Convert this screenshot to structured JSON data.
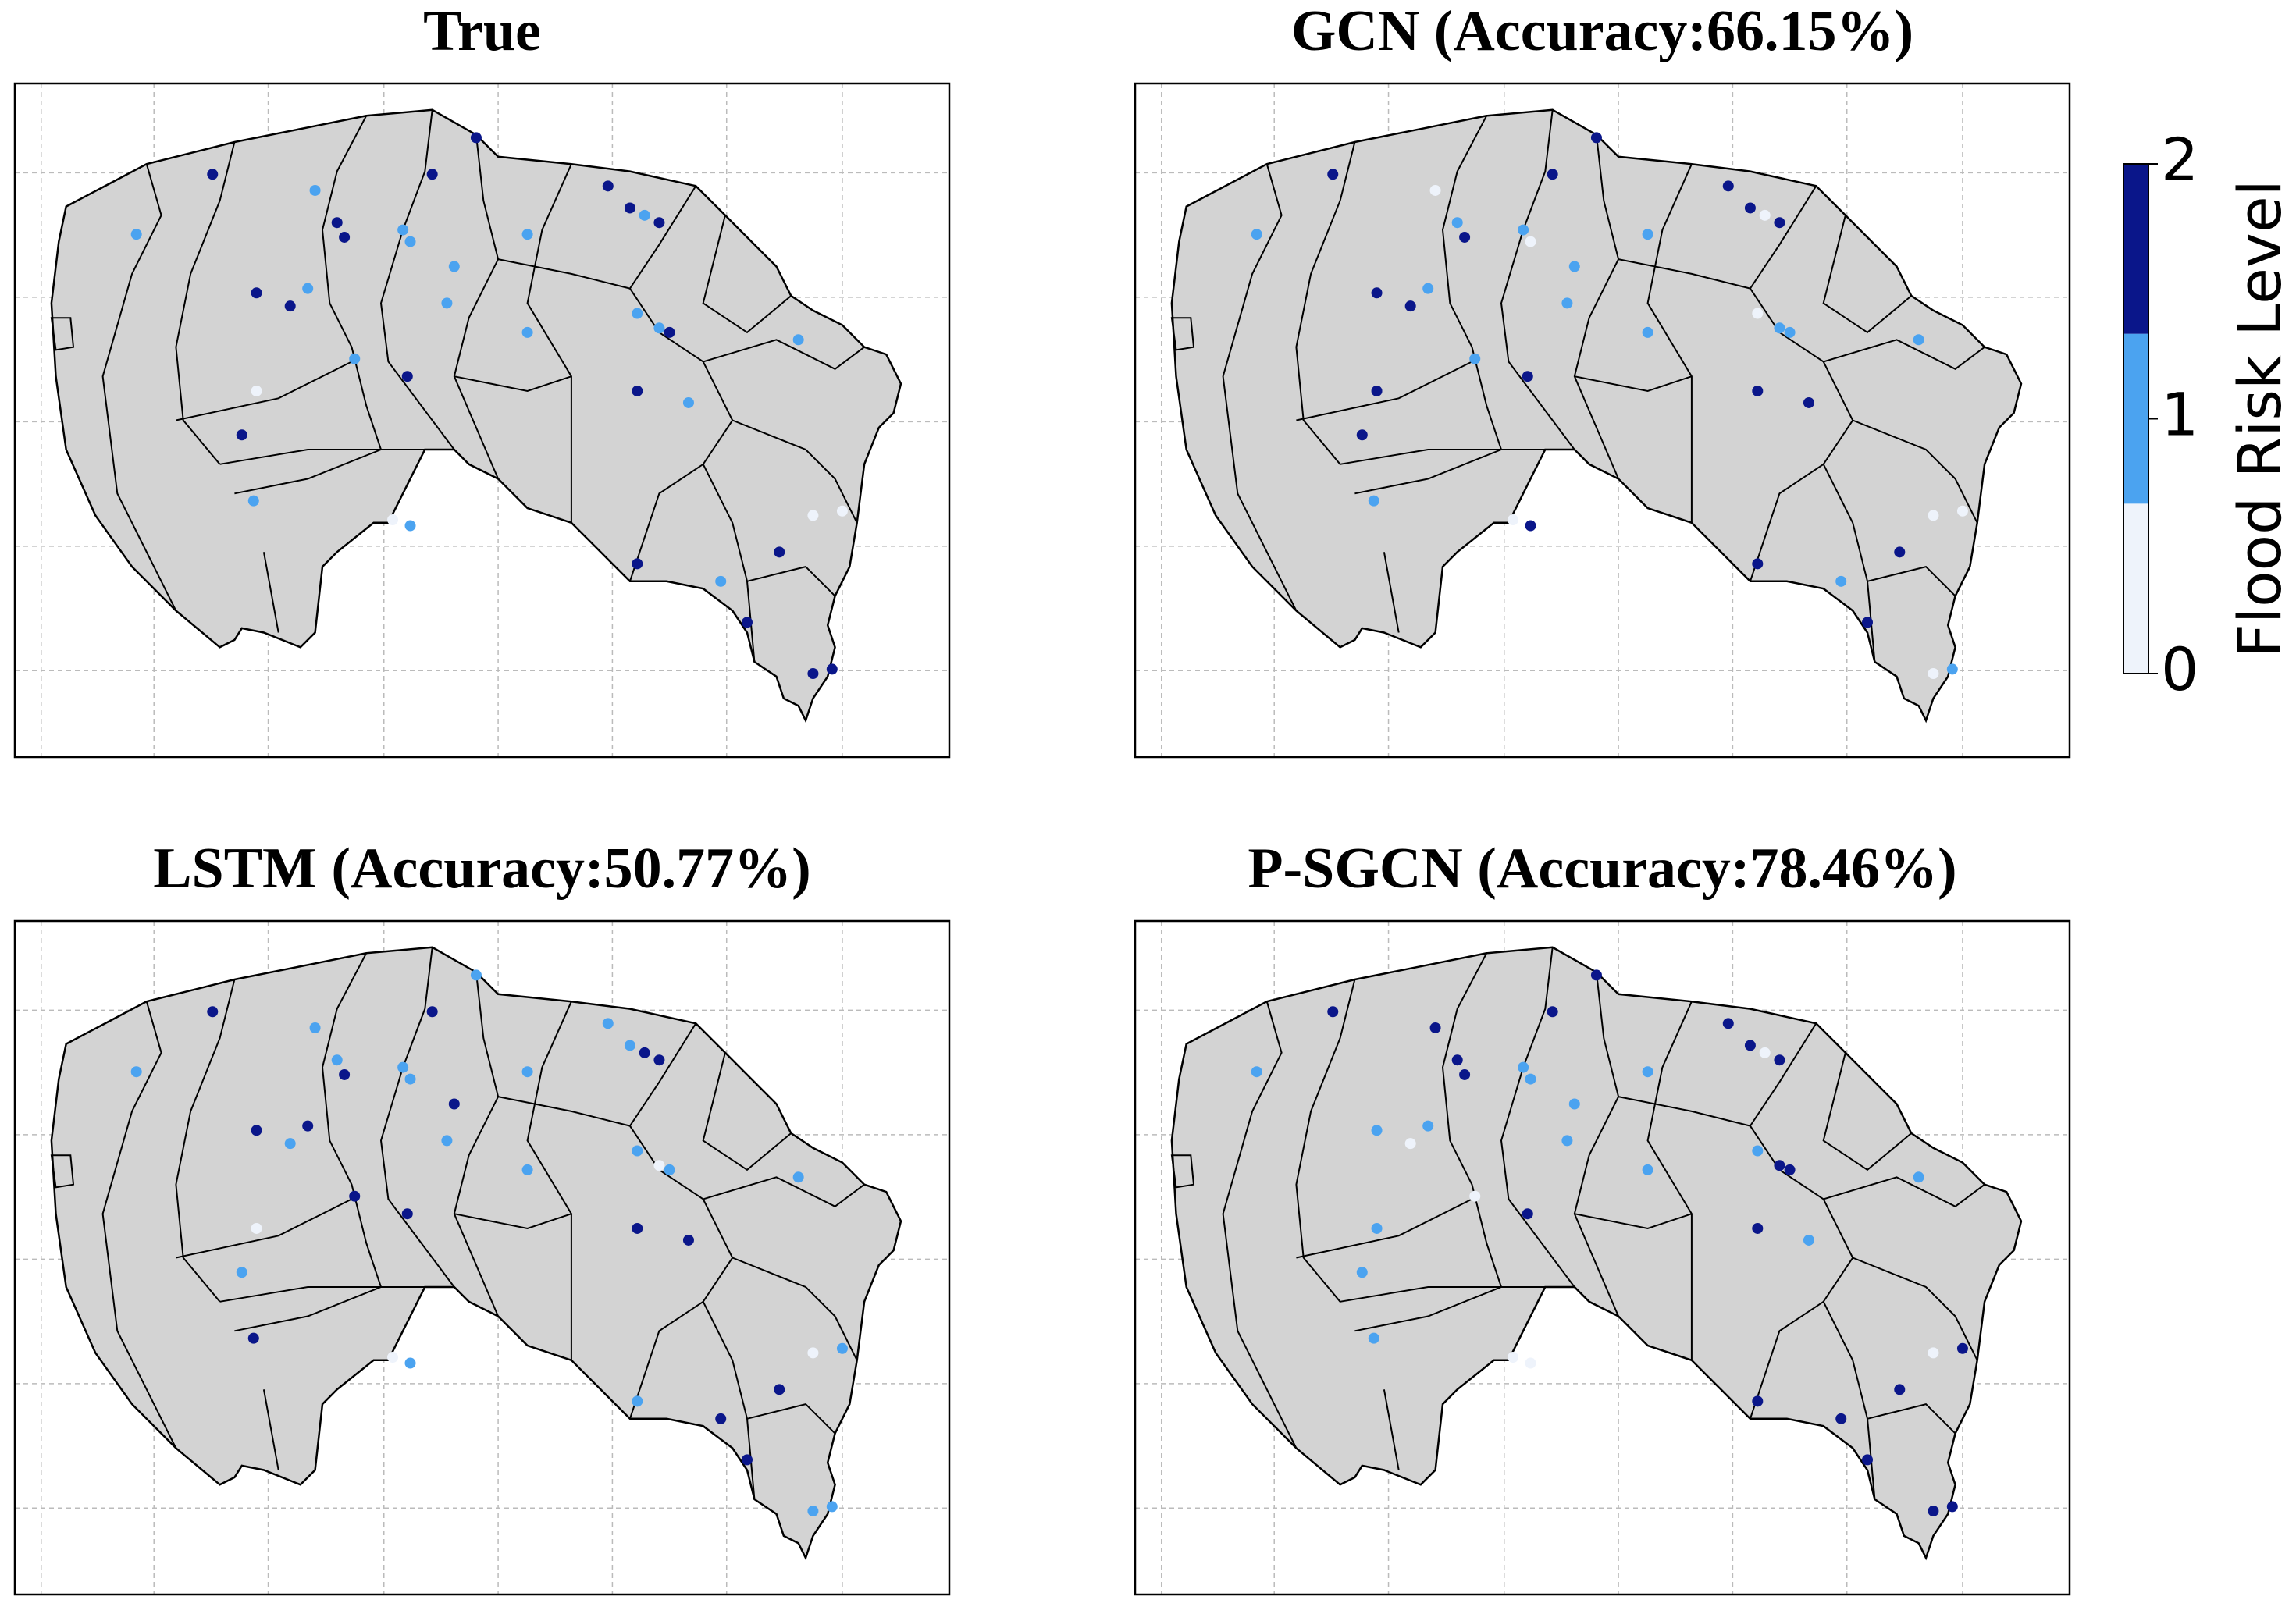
{
  "panels": [
    {
      "title": "True",
      "levels": [
        2,
        1,
        2,
        2,
        2,
        1,
        2,
        2,
        1,
        1,
        1,
        1,
        2,
        1,
        2,
        2,
        2,
        1,
        1,
        1,
        1,
        1,
        2,
        1,
        1,
        2,
        2,
        1,
        0,
        2,
        1,
        0,
        1,
        2,
        1,
        2,
        0,
        0,
        2,
        2,
        2
      ]
    },
    {
      "title": "GCN (Accuracy:66.15%)",
      "levels": [
        2,
        0,
        2,
        2,
        2,
        1,
        1,
        2,
        1,
        0,
        1,
        1,
        2,
        0,
        2,
        2,
        2,
        1,
        1,
        1,
        0,
        1,
        1,
        1,
        1,
        2,
        2,
        2,
        2,
        2,
        1,
        0,
        2,
        2,
        1,
        2,
        0,
        0,
        2,
        0,
        1
      ]
    },
    {
      "title": "LSTM (Accuracy:50.77%)",
      "levels": [
        2,
        1,
        2,
        1,
        1,
        1,
        1,
        2,
        1,
        1,
        2,
        1,
        1,
        2,
        2,
        2,
        1,
        2,
        1,
        1,
        1,
        0,
        1,
        1,
        2,
        2,
        2,
        2,
        0,
        1,
        2,
        0,
        1,
        1,
        2,
        2,
        0,
        1,
        2,
        1,
        1
      ]
    },
    {
      "title": "P-SGCN (Accuracy:78.46%)",
      "levels": [
        2,
        2,
        2,
        2,
        2,
        1,
        2,
        2,
        1,
        1,
        1,
        1,
        2,
        0,
        2,
        1,
        0,
        1,
        1,
        1,
        1,
        2,
        2,
        1,
        0,
        2,
        2,
        1,
        1,
        1,
        1,
        0,
        0,
        2,
        2,
        2,
        0,
        2,
        2,
        2,
        2
      ]
    }
  ],
  "colorbar": {
    "label": "Flood Risk Level",
    "lim": [
      0,
      2
    ],
    "ticks": [
      0,
      1,
      2
    ],
    "colors": [
      "#eef3fb",
      "#4ba3f0",
      "#0a168a"
    ]
  }
}
